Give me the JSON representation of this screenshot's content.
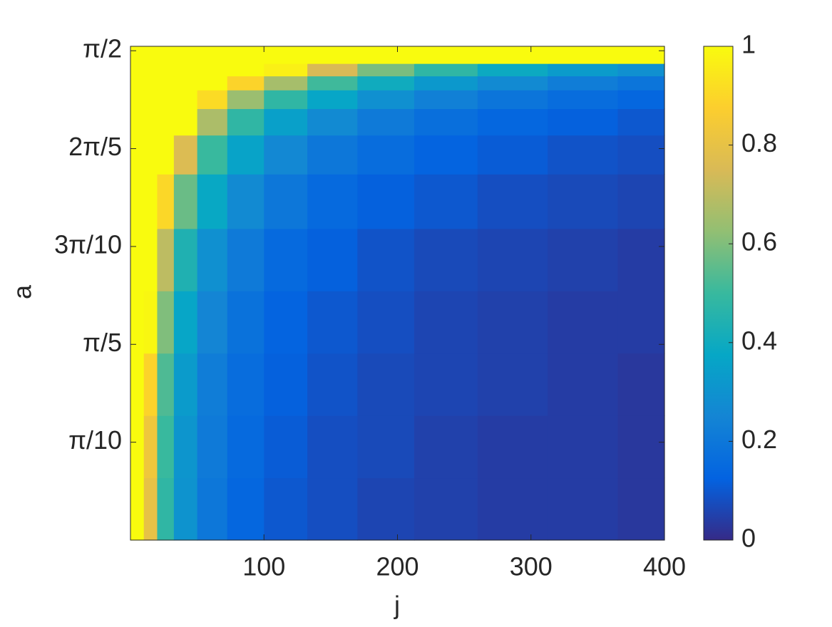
{
  "chart_data": {
    "type": "heatmap",
    "xlabel": "j",
    "ylabel": "a",
    "x": [
      5,
      15,
      25,
      40,
      60,
      85,
      115,
      150,
      190,
      235,
      285,
      340,
      390
    ],
    "y": [
      0.1,
      0.3,
      0.5,
      0.7,
      0.9,
      1.1,
      1.25,
      1.35,
      1.42,
      1.47,
      1.51,
      1.55
    ],
    "values": [
      [
        1,
        0.8,
        0.48,
        0.3,
        0.2,
        0.14,
        0.1,
        0.08,
        0.06,
        0.05,
        0.04,
        0.04,
        0.03
      ],
      [
        1,
        0.83,
        0.5,
        0.31,
        0.21,
        0.15,
        0.11,
        0.08,
        0.07,
        0.05,
        0.04,
        0.04,
        0.03
      ],
      [
        1,
        0.89,
        0.53,
        0.33,
        0.22,
        0.16,
        0.12,
        0.09,
        0.07,
        0.06,
        0.05,
        0.04,
        0.03
      ],
      [
        1,
        0.99,
        0.6,
        0.37,
        0.25,
        0.18,
        0.13,
        0.1,
        0.08,
        0.06,
        0.05,
        0.04,
        0.04
      ],
      [
        1,
        1,
        0.7,
        0.44,
        0.29,
        0.21,
        0.15,
        0.12,
        0.09,
        0.07,
        0.06,
        0.05,
        0.04
      ],
      [
        1,
        1,
        0.9,
        0.57,
        0.38,
        0.27,
        0.2,
        0.15,
        0.12,
        0.1,
        0.08,
        0.07,
        0.06
      ],
      [
        1,
        1,
        1,
        0.76,
        0.5,
        0.36,
        0.26,
        0.2,
        0.16,
        0.13,
        0.11,
        0.09,
        0.08
      ],
      [
        1,
        1,
        1,
        1,
        0.67,
        0.48,
        0.35,
        0.27,
        0.21,
        0.17,
        0.14,
        0.12,
        0.1
      ],
      [
        1,
        1,
        1,
        1,
        0.91,
        0.64,
        0.48,
        0.37,
        0.29,
        0.23,
        0.19,
        0.16,
        0.14
      ],
      [
        1,
        1,
        1,
        1,
        1,
        0.89,
        0.66,
        0.51,
        0.4,
        0.32,
        0.27,
        0.22,
        0.19
      ],
      [
        1,
        1,
        1,
        1,
        1,
        1,
        0.97,
        0.75,
        0.59,
        0.48,
        0.39,
        0.33,
        0.29
      ],
      [
        1,
        1,
        1,
        1,
        1,
        1,
        1,
        1,
        1,
        1,
        1,
        1,
        1
      ]
    ],
    "xlim": [
      0,
      400
    ],
    "xticks": [
      100,
      200,
      300,
      400
    ],
    "ylim": [
      0,
      1.585
    ],
    "yticks": [
      {
        "value": 0.314159,
        "label": "π/10"
      },
      {
        "value": 0.628319,
        "label": "π/5"
      },
      {
        "value": 0.942478,
        "label": "3π/10"
      },
      {
        "value": 1.256637,
        "label": "2π/5"
      },
      {
        "value": 1.570796,
        "label": "π/2"
      }
    ],
    "clim": [
      0,
      1
    ],
    "cticks": [
      0,
      0.2,
      0.4,
      0.6,
      0.8,
      1
    ],
    "colormap": [
      "#352a87",
      "#0363e1",
      "#1485d4",
      "#06a7c6",
      "#38b99e",
      "#92bf73",
      "#d9ba56",
      "#fcce2e",
      "#f9fb0e"
    ]
  }
}
